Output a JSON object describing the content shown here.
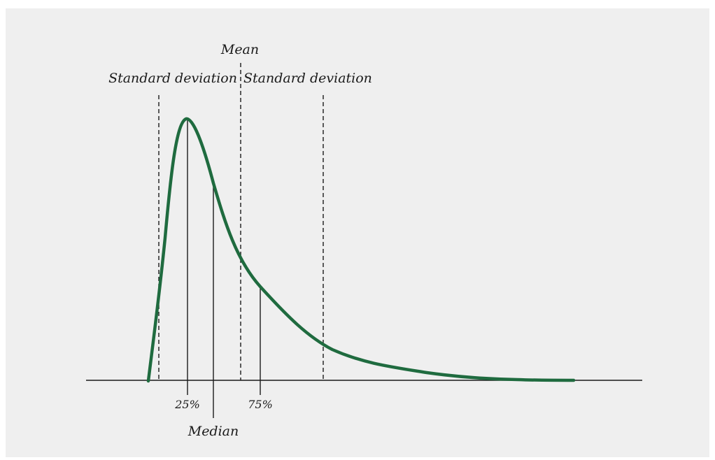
{
  "labels": {
    "mean": "Mean",
    "sd_left": "Standard deviation",
    "sd_right": "Standard deviation",
    "q25": "25%",
    "q75": "75%",
    "median": "Median"
  },
  "colors": {
    "background": "#efefef",
    "curve": "#1f6b3f",
    "lines": "#1a1a1a"
  },
  "diagram": {
    "shape": "right-skewed distribution curve",
    "markers": [
      {
        "key": "sd_left",
        "style": "dashed"
      },
      {
        "key": "q25",
        "style": "solid"
      },
      {
        "key": "median",
        "style": "solid"
      },
      {
        "key": "mean",
        "style": "dashed"
      },
      {
        "key": "q75",
        "style": "solid"
      },
      {
        "key": "sd_right",
        "style": "dashed"
      }
    ]
  }
}
